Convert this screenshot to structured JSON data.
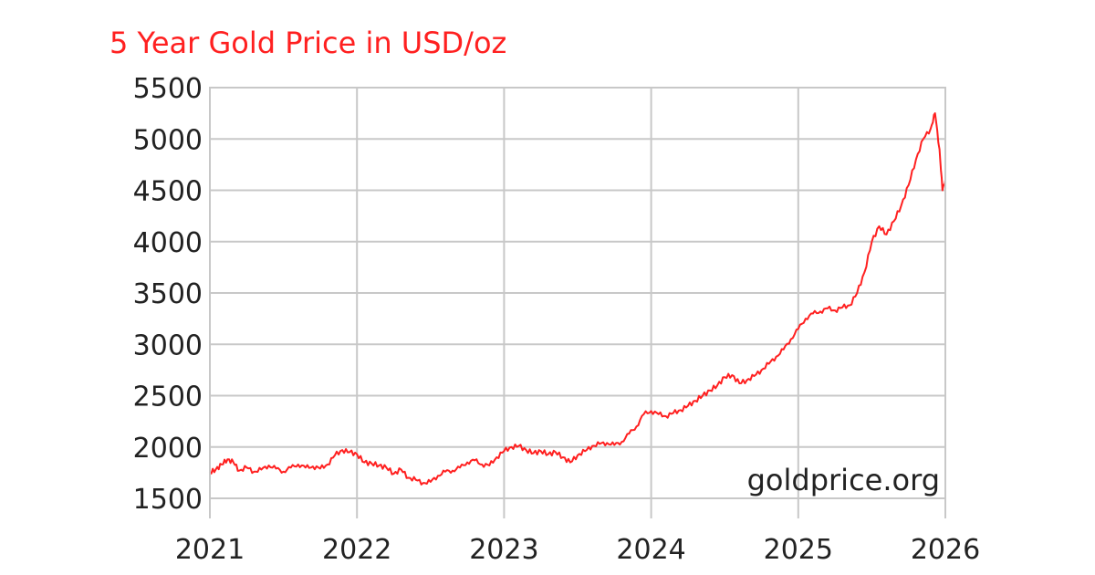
{
  "chart_data": {
    "type": "line",
    "title": "5 Year Gold Price in USD/oz",
    "watermark": "goldprice.org",
    "xlabel": "",
    "ylabel": "",
    "xlim": [
      2021,
      2026
    ],
    "ylim": [
      1500,
      5500
    ],
    "x_ticks": [
      "2021",
      "2022",
      "2023",
      "2024",
      "2025",
      "2026"
    ],
    "y_ticks": [
      "1500",
      "2000",
      "2500",
      "3000",
      "3500",
      "4000",
      "4500",
      "5000",
      "5500"
    ],
    "grid": true,
    "line_color": "#ff2020",
    "series": [
      {
        "x": [
          2021.0,
          2021.04,
          2021.08,
          2021.12,
          2021.16,
          2021.2,
          2021.25,
          2021.3,
          2021.35,
          2021.4,
          2021.45,
          2021.5,
          2021.55,
          2021.6,
          2021.65,
          2021.7,
          2021.75,
          2021.8,
          2021.85,
          2021.9,
          2021.95,
          2022.0,
          2022.05,
          2022.1,
          2022.15,
          2022.2,
          2022.25,
          2022.3,
          2022.35,
          2022.4,
          2022.45,
          2022.5,
          2022.55,
          2022.6,
          2022.65,
          2022.7,
          2022.75,
          2022.8,
          2022.85,
          2022.9,
          2022.95,
          2023.0,
          2023.05,
          2023.1,
          2023.15,
          2023.2,
          2023.25,
          2023.3,
          2023.35,
          2023.4,
          2023.45,
          2023.5,
          2023.55,
          2023.6,
          2023.65,
          2023.7,
          2023.75,
          2023.8,
          2023.85,
          2023.9,
          2023.95,
          2024.0,
          2024.05,
          2024.1,
          2024.15,
          2024.2,
          2024.25,
          2024.3,
          2024.35,
          2024.4,
          2024.45,
          2024.5,
          2024.55,
          2024.6,
          2024.65,
          2024.7,
          2024.75,
          2024.8,
          2024.85,
          2024.9,
          2024.95,
          2025.0,
          2025.05,
          2025.1,
          2025.15,
          2025.2,
          2025.25,
          2025.3,
          2025.35,
          2025.4,
          2025.45,
          2025.5,
          2025.55,
          2025.6,
          2025.65,
          2025.7,
          2025.75,
          2025.8,
          2025.85,
          2025.9,
          2025.93,
          2025.96,
          2025.98,
          2026.0
        ],
        "y": [
          1750,
          1780,
          1830,
          1880,
          1850,
          1770,
          1800,
          1760,
          1780,
          1820,
          1790,
          1760,
          1800,
          1830,
          1800,
          1810,
          1790,
          1830,
          1920,
          1970,
          1950,
          1930,
          1850,
          1840,
          1820,
          1800,
          1740,
          1780,
          1700,
          1680,
          1650,
          1660,
          1720,
          1760,
          1770,
          1800,
          1850,
          1870,
          1830,
          1820,
          1900,
          1960,
          2000,
          2010,
          1970,
          1940,
          1960,
          1930,
          1950,
          1900,
          1850,
          1920,
          1960,
          2010,
          2030,
          2040,
          2020,
          2050,
          2130,
          2200,
          2320,
          2350,
          2320,
          2300,
          2330,
          2360,
          2400,
          2450,
          2500,
          2550,
          2600,
          2680,
          2700,
          2620,
          2650,
          2690,
          2750,
          2810,
          2880,
          2950,
          3050,
          3150,
          3250,
          3300,
          3320,
          3350,
          3330,
          3360,
          3380,
          3500,
          3700,
          4000,
          4150,
          4070,
          4200,
          4350,
          4550,
          4800,
          5000,
          5100,
          5250,
          4900,
          4500,
          4600
        ]
      }
    ]
  }
}
